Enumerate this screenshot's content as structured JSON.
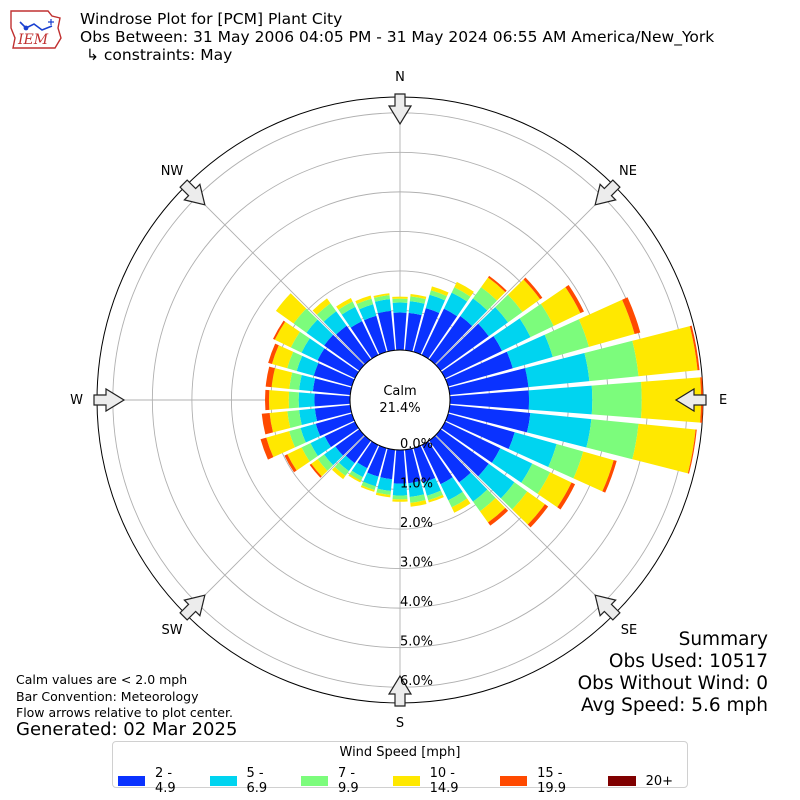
{
  "header": {
    "logo_text": "IEM",
    "title": "Windrose Plot for [PCM] Plant City",
    "obs_between": "Obs Between: 31 May 2006 04:05 PM - 31 May 2024 06:55 AM America/New_York",
    "constraints": "↳ constraints: May"
  },
  "notes": {
    "calm_note": "Calm values are < 2.0 mph",
    "bar_convention": "Bar Convention: Meteorology",
    "flow_arrows": "Flow arrows relative to plot center.",
    "generated": "Generated: 02 Mar 2025"
  },
  "summary": {
    "heading": "Summary",
    "obs_used": "Obs Used: 10517",
    "obs_without_wind": "Obs Without Wind: 0",
    "avg_speed": "Avg Speed: 5.6 mph"
  },
  "chart_data": {
    "type": "windrose",
    "calm_label": "Calm",
    "calm_value": "21.4%",
    "radial_ticks": [
      "0.0%",
      "1.0%",
      "2.0%",
      "3.0%",
      "4.0%",
      "5.0%",
      "6.0%"
    ],
    "radial_max": 6.4,
    "direction_labels": [
      "N",
      "NE",
      "E",
      "SE",
      "S",
      "SW",
      "W",
      "NW"
    ],
    "legend_title": "Wind Speed [mph]",
    "bins": [
      {
        "label": "2 - 4.9",
        "color": "#0a32ff"
      },
      {
        "label": "5 - 6.9",
        "color": "#00d4f0"
      },
      {
        "label": "7 - 9.9",
        "color": "#7cfc7c"
      },
      {
        "label": "10 - 14.9",
        "color": "#ffe800"
      },
      {
        "label": "15 - 19.9",
        "color": "#ff4a00"
      },
      {
        "label": "20+",
        "color": "#800000"
      }
    ],
    "directions_deg": [
      0,
      10,
      20,
      30,
      40,
      50,
      60,
      70,
      80,
      90,
      100,
      110,
      120,
      130,
      140,
      150,
      160,
      170,
      180,
      190,
      200,
      210,
      220,
      230,
      240,
      250,
      260,
      270,
      280,
      290,
      300,
      310,
      320,
      330,
      340,
      350
    ],
    "values": [
      [
        0.95,
        0.25,
        0.1,
        0.05,
        0.0,
        0.0
      ],
      [
        0.95,
        0.3,
        0.12,
        0.06,
        0.0,
        0.0
      ],
      [
        1.15,
        0.35,
        0.12,
        0.1,
        0.0,
        0.0
      ],
      [
        1.3,
        0.45,
        0.15,
        0.15,
        0.0,
        0.0
      ],
      [
        1.35,
        0.55,
        0.35,
        0.3,
        0.05,
        0.0
      ],
      [
        1.5,
        0.6,
        0.45,
        0.55,
        0.07,
        0.0
      ],
      [
        1.6,
        0.8,
        0.65,
        0.75,
        0.1,
        0.0
      ],
      [
        1.7,
        1.05,
        0.95,
        1.2,
        0.15,
        0.0
      ],
      [
        2.0,
        1.55,
        1.25,
        1.5,
        0.05,
        0.0
      ],
      [
        2.0,
        1.6,
        1.25,
        1.5,
        0.05,
        0.0
      ],
      [
        2.05,
        1.55,
        1.2,
        1.45,
        0.03,
        0.0
      ],
      [
        1.75,
        1.1,
        0.7,
        0.8,
        0.08,
        0.0
      ],
      [
        1.55,
        0.9,
        0.5,
        0.6,
        0.1,
        0.0
      ],
      [
        1.5,
        0.8,
        0.4,
        0.55,
        0.1,
        0.0
      ],
      [
        1.3,
        0.6,
        0.3,
        0.35,
        0.1,
        0.0
      ],
      [
        1.1,
        0.45,
        0.2,
        0.15,
        0.0,
        0.0
      ],
      [
        0.9,
        0.35,
        0.12,
        0.06,
        0.0,
        0.0
      ],
      [
        0.85,
        0.35,
        0.15,
        0.1,
        0.0,
        0.0
      ],
      [
        0.85,
        0.3,
        0.1,
        0.06,
        0.0,
        0.0
      ],
      [
        0.75,
        0.3,
        0.1,
        0.06,
        0.0,
        0.0
      ],
      [
        0.75,
        0.25,
        0.1,
        0.05,
        0.0,
        0.0
      ],
      [
        0.65,
        0.25,
        0.1,
        0.05,
        0.0,
        0.0
      ],
      [
        0.7,
        0.25,
        0.15,
        0.1,
        0.0,
        0.0
      ],
      [
        0.75,
        0.35,
        0.2,
        0.2,
        0.05,
        0.0
      ],
      [
        0.85,
        0.4,
        0.25,
        0.4,
        0.08,
        0.0
      ],
      [
        0.95,
        0.4,
        0.3,
        0.6,
        0.15,
        0.0
      ],
      [
        0.9,
        0.4,
        0.3,
        0.45,
        0.2,
        0.0
      ],
      [
        0.9,
        0.4,
        0.25,
        0.5,
        0.1,
        0.0
      ],
      [
        0.95,
        0.35,
        0.25,
        0.45,
        0.15,
        0.0
      ],
      [
        1.0,
        0.45,
        0.25,
        0.4,
        0.1,
        0.0
      ],
      [
        1.05,
        0.45,
        0.3,
        0.45,
        0.05,
        0.0
      ],
      [
        1.1,
        0.55,
        0.4,
        0.55,
        0.0,
        0.0
      ],
      [
        1.05,
        0.45,
        0.25,
        0.15,
        0.0,
        0.0
      ],
      [
        0.95,
        0.4,
        0.15,
        0.1,
        0.0,
        0.0
      ],
      [
        0.95,
        0.3,
        0.15,
        0.08,
        0.0,
        0.0
      ],
      [
        1.0,
        0.3,
        0.1,
        0.05,
        0.0,
        0.0
      ]
    ]
  }
}
